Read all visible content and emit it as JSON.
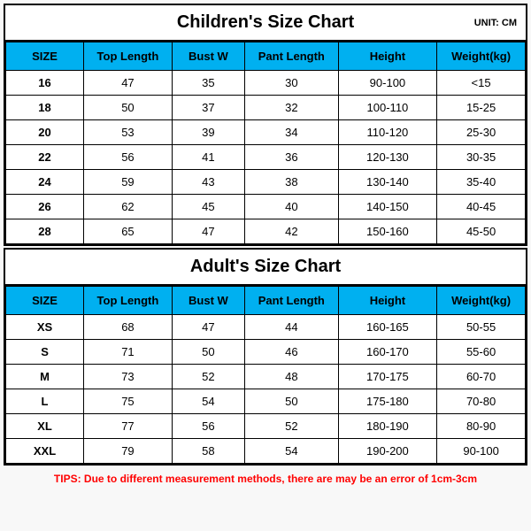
{
  "header_color": "#00b0f0",
  "unit_label": "UNIT: CM",
  "headers": [
    "SIZE",
    "Top Length",
    "Bust W",
    "Pant Length",
    "Height",
    "Weight(kg)"
  ],
  "children": {
    "title": "Children's Size Chart",
    "rows": [
      [
        "16",
        "47",
        "35",
        "30",
        "90-100",
        "<15"
      ],
      [
        "18",
        "50",
        "37",
        "32",
        "100-110",
        "15-25"
      ],
      [
        "20",
        "53",
        "39",
        "34",
        "110-120",
        "25-30"
      ],
      [
        "22",
        "56",
        "41",
        "36",
        "120-130",
        "30-35"
      ],
      [
        "24",
        "59",
        "43",
        "38",
        "130-140",
        "35-40"
      ],
      [
        "26",
        "62",
        "45",
        "40",
        "140-150",
        "40-45"
      ],
      [
        "28",
        "65",
        "47",
        "42",
        "150-160",
        "45-50"
      ]
    ]
  },
  "adult": {
    "title": "Adult's Size Chart",
    "rows": [
      [
        "XS",
        "68",
        "47",
        "44",
        "160-165",
        "50-55"
      ],
      [
        "S",
        "71",
        "50",
        "46",
        "160-170",
        "55-60"
      ],
      [
        "M",
        "73",
        "52",
        "48",
        "170-175",
        "60-70"
      ],
      [
        "L",
        "75",
        "54",
        "50",
        "175-180",
        "70-80"
      ],
      [
        "XL",
        "77",
        "56",
        "52",
        "180-190",
        "80-90"
      ],
      [
        "XXL",
        "79",
        "58",
        "54",
        "190-200",
        "90-100"
      ]
    ]
  },
  "tips": "TIPS: Due to different measurement methods, there are may be an error of 1cm-3cm"
}
